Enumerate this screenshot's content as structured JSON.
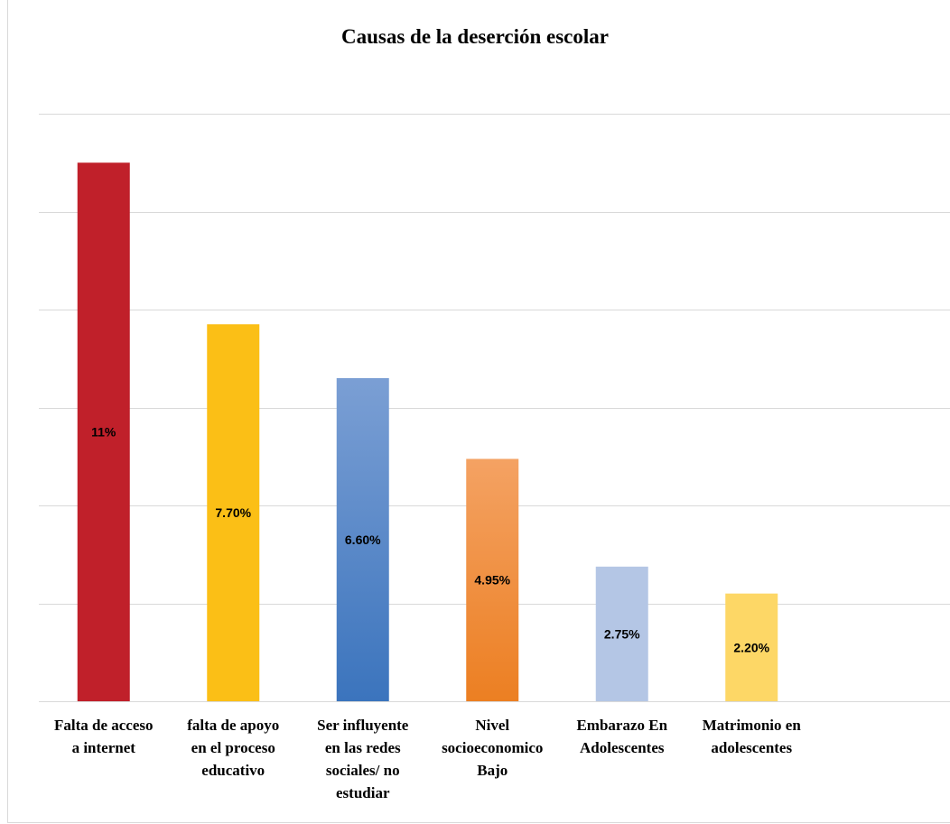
{
  "chart_data": {
    "type": "bar",
    "title": "Causas de la deserción escolar",
    "xlabel": "",
    "ylabel": "",
    "categories": [
      "Falta de acceso a internet",
      "falta de apoyo en el proceso educativo",
      "Ser influyente en las redes sociales/ no estudiar",
      "Nivel socioeconomico Bajo",
      "Embarazo En Adolescentes",
      "Matrimonio en adolescentes"
    ],
    "category_lines": [
      [
        "Falta de acceso",
        "a internet"
      ],
      [
        "falta de apoyo",
        "en el proceso",
        "educativo"
      ],
      [
        "Ser influyente",
        "en las redes",
        "sociales/ no",
        "estudiar"
      ],
      [
        "Nivel",
        "socioeconomico",
        "Bajo"
      ],
      [
        "Embarazo En",
        "Adolescentes"
      ],
      [
        "Matrimonio en",
        "adolescentes"
      ]
    ],
    "values": [
      11,
      7.7,
      6.6,
      4.95,
      2.75,
      2.2
    ],
    "value_labels": [
      "11%",
      "7.70%",
      "6.60%",
      "4.95%",
      "2.75%",
      "2.20%"
    ],
    "ylim": [
      0,
      12
    ],
    "grid": true,
    "legend": "none",
    "colors": [
      [
        "#c0202a",
        "#c0202a"
      ],
      [
        "#fbbf16",
        "#fbbf16"
      ],
      [
        "#7b9fd4",
        "#3b74bd"
      ],
      [
        "#f4a263",
        "#ec7f22"
      ],
      [
        "#b4c6e5",
        "#b4c6e5"
      ],
      [
        "#fdd766",
        "#fdd766"
      ]
    ]
  }
}
